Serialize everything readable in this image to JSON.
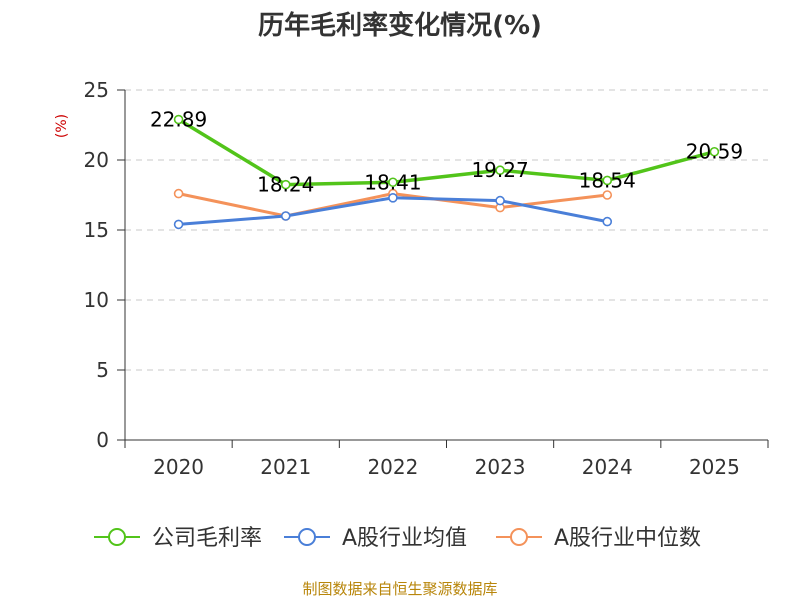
{
  "chart_data": {
    "type": "line",
    "title": "历年毛利率变化情况(%)",
    "ylabel": "(%)",
    "xlabel": "",
    "ylim": [
      0,
      25
    ],
    "yticks": [
      0,
      5,
      10,
      15,
      20,
      25
    ],
    "categories": [
      "2020",
      "2021",
      "2022",
      "2023",
      "2024",
      "2025"
    ],
    "grid": true,
    "legend_position": "bottom",
    "series": [
      {
        "name": "公司毛利率",
        "color": "#52c41a",
        "values": [
          22.89,
          18.24,
          18.41,
          19.27,
          18.54,
          20.59
        ],
        "labels": [
          "22.89",
          "18.24",
          "18.41",
          "19.27",
          "18.54",
          "20.59"
        ]
      },
      {
        "name": "A股行业均值",
        "color": "#4a7fd8",
        "values": [
          15.4,
          16.0,
          17.3,
          17.1,
          15.6,
          null
        ],
        "labels": []
      },
      {
        "name": "A股行业中位数",
        "color": "#f4925a",
        "values": [
          17.6,
          16.0,
          17.6,
          16.6,
          17.5,
          null
        ],
        "labels": []
      }
    ]
  },
  "footer": {
    "source": "制图数据来自恒生聚源数据库"
  }
}
